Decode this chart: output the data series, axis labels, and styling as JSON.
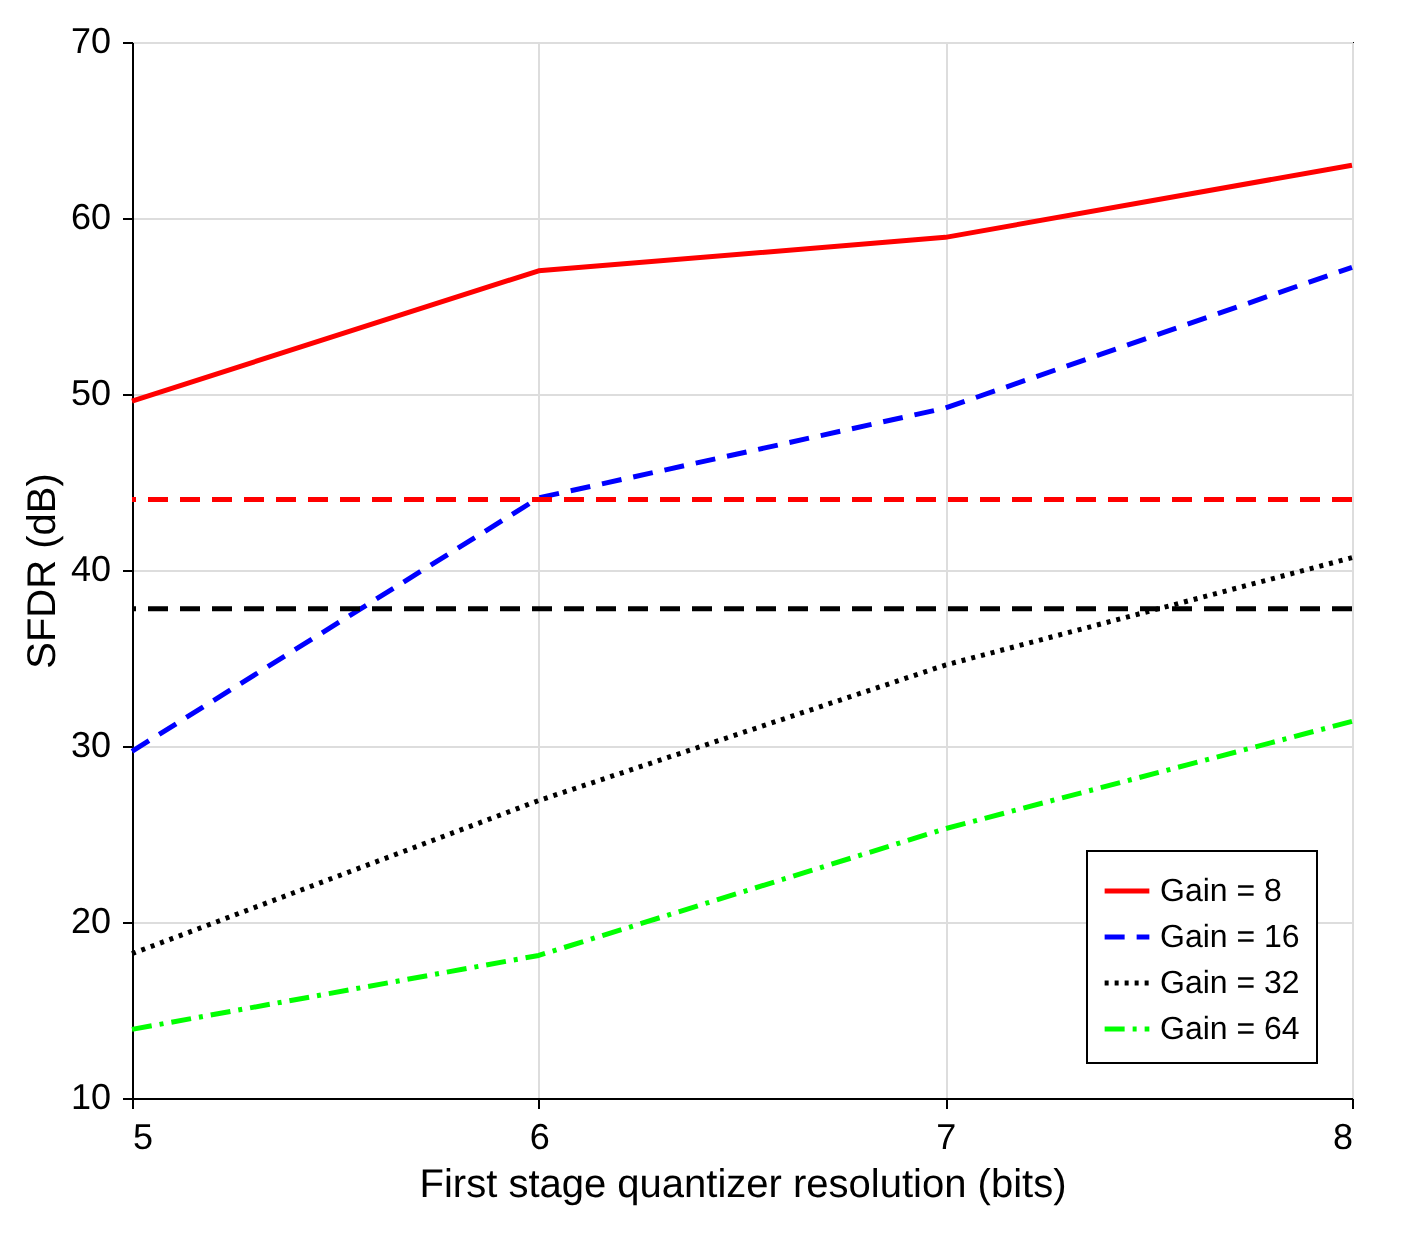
{
  "chart_data": {
    "type": "line",
    "xlabel": "First stage quantizer resolution (bits)",
    "ylabel": "SFDR (dB)",
    "x": [
      5,
      6,
      7,
      8
    ],
    "xlim": [
      5,
      8
    ],
    "xticks": [
      5,
      6,
      7,
      8
    ],
    "ylim": [
      10,
      70
    ],
    "yticks": [
      10,
      20,
      30,
      40,
      50,
      60,
      70
    ],
    "grid": true,
    "legend": "bottom right",
    "marker": "none",
    "series": [
      {
        "name": "Gain = 8",
        "color": "#ff0000",
        "line_style": "solid",
        "values": [
          49.6,
          57.0,
          58.9,
          63.0
        ]
      },
      {
        "name": "Gain = 16",
        "color": "#0000ff",
        "line_style": "dashed",
        "values": [
          29.7,
          44.1,
          49.2,
          57.2
        ]
      },
      {
        "name": "Gain = 32",
        "color": "#000000",
        "line_style": "dotted",
        "values": [
          18.2,
          26.9,
          34.6,
          40.7
        ]
      },
      {
        "name": "Gain = 64",
        "color": "#00ff00",
        "line_style": "dashdot",
        "values": [
          13.9,
          18.1,
          25.3,
          31.4
        ]
      }
    ],
    "ref_lines": [
      {
        "axis": "y",
        "value": 44.0,
        "color": "#ff0000",
        "line_style": "dashed"
      },
      {
        "axis": "y",
        "value": 37.8,
        "color": "#000000",
        "line_style": "dashed"
      }
    ]
  }
}
